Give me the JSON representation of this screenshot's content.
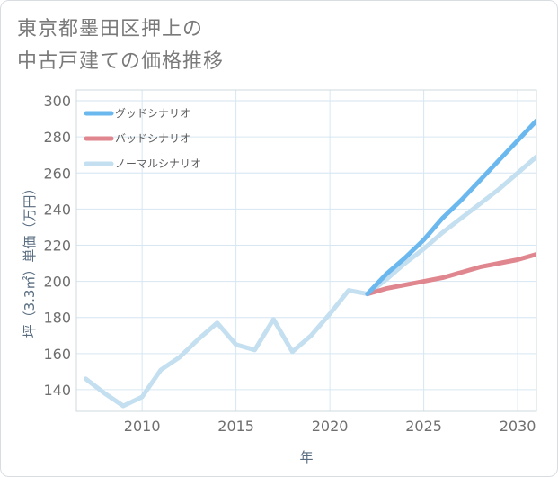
{
  "page": {
    "title_line1": "東京都墨田区押上の",
    "title_line2": "中古戸建ての価格推移"
  },
  "chart_data": {
    "type": "line",
    "title": "東京都墨田区押上の中古戸建ての価格推移",
    "xlabel": "年",
    "ylabel": "坪（3.3㎡）単価（万円）",
    "xlim": [
      2006.5,
      2031
    ],
    "ylim": [
      128,
      306
    ],
    "x_ticks": [
      2010,
      2015,
      2020,
      2025,
      2030
    ],
    "y_ticks": [
      140,
      160,
      180,
      200,
      220,
      240,
      260,
      280,
      300
    ],
    "grid": true,
    "legend_position": "top-left",
    "series": [
      {
        "name": "グッドシナリオ",
        "color": "#6bb8ee",
        "x": [
          2022,
          2023,
          2024,
          2025,
          2026,
          2027,
          2028,
          2029,
          2030,
          2031
        ],
        "y": [
          193,
          204,
          213,
          223,
          235,
          245,
          256,
          267,
          278,
          289
        ]
      },
      {
        "name": "バッドシナリオ",
        "color": "#e0868e",
        "x": [
          2022,
          2023,
          2024,
          2025,
          2026,
          2027,
          2028,
          2029,
          2030,
          2031
        ],
        "y": [
          193,
          196,
          198,
          200,
          202,
          205,
          208,
          210,
          212,
          215
        ]
      },
      {
        "name": "ノーマルシナリオ",
        "color": "#c3dff0",
        "x": [
          2007,
          2008,
          2009,
          2010,
          2011,
          2012,
          2013,
          2014,
          2015,
          2016,
          2017,
          2018,
          2019,
          2020,
          2021,
          2022,
          2023,
          2024,
          2025,
          2026,
          2027,
          2028,
          2029,
          2030,
          2031
        ],
        "y": [
          146,
          138,
          131,
          136,
          151,
          158,
          168,
          177,
          165,
          162,
          179,
          161,
          170,
          182,
          195,
          193,
          201,
          210,
          218,
          227,
          235,
          243,
          251,
          260,
          269
        ]
      }
    ]
  }
}
